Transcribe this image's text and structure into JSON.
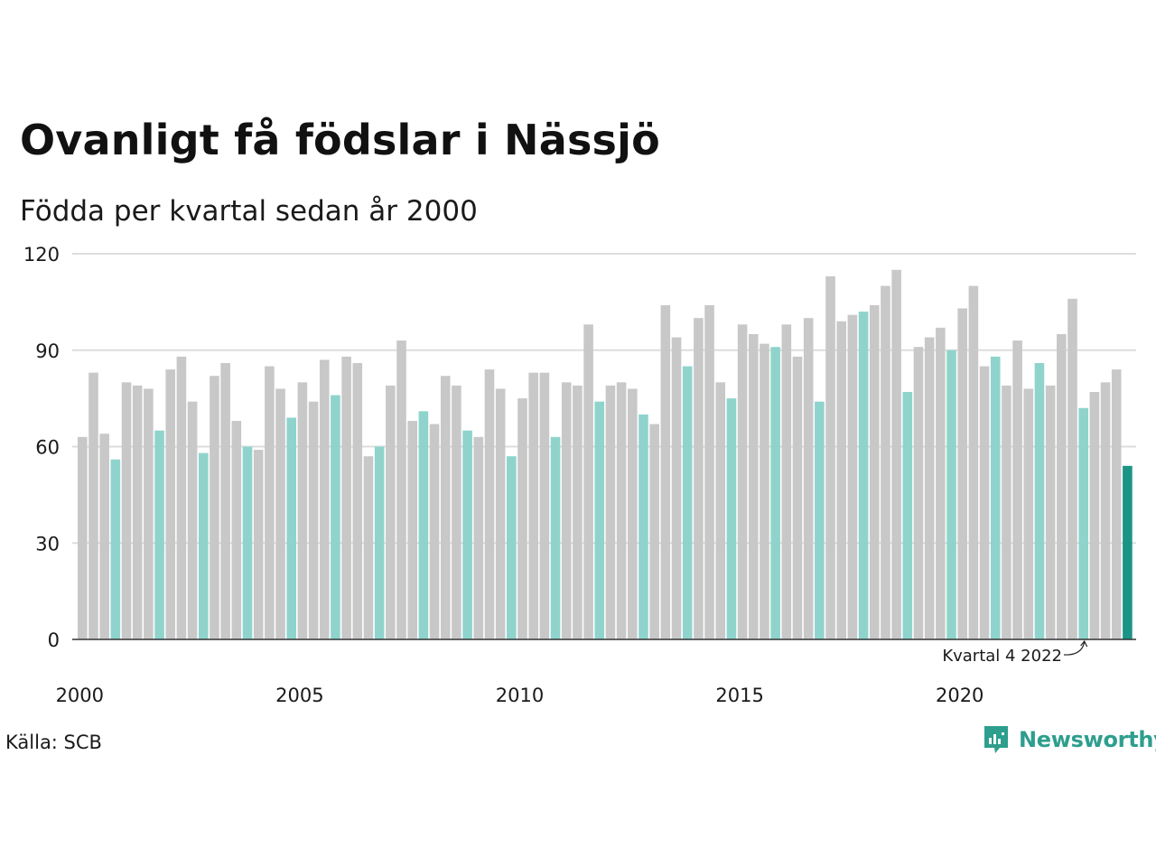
{
  "header": {
    "title": "Ovanligt få födslar i Nässjö",
    "subtitle": "Födda per kvartal sedan år 2000"
  },
  "footer": {
    "source": "Källa: SCB",
    "brand": "Newsworthy",
    "logo_icon": "bar-chart-speech-bubble-icon"
  },
  "colors": {
    "bar_other": "#c8c8c8",
    "bar_q4": "#8fd4cc",
    "bar_latest": "#1b9485",
    "grid": "#dddddd",
    "axis": "#333333",
    "brand": "#2e9e8e"
  },
  "chart_data": {
    "type": "bar",
    "title": "Ovanligt få födslar i Nässjö",
    "subtitle": "Födda per kvartal sedan år 2000",
    "xlabel": "",
    "ylabel": "",
    "ylim": [
      0,
      120
    ],
    "yticks": [
      0,
      30,
      60,
      90,
      120
    ],
    "xtick_labels": [
      "2000",
      "2005",
      "2010",
      "2015",
      "2020"
    ],
    "grid": true,
    "start": "2000 Q1",
    "end": "2023 Q4",
    "highlight_rule": "Q4 bars highlighted; latest quarter emphasised",
    "annotation": {
      "text": "Kvartal 4 2022",
      "target": "2022 Q4"
    },
    "values": [
      63,
      83,
      64,
      56,
      80,
      79,
      78,
      65,
      84,
      88,
      74,
      58,
      82,
      86,
      68,
      60,
      59,
      85,
      78,
      69,
      80,
      74,
      87,
      76,
      88,
      86,
      57,
      60,
      79,
      93,
      68,
      71,
      67,
      82,
      79,
      65,
      63,
      84,
      78,
      57,
      75,
      83,
      83,
      63,
      80,
      79,
      98,
      74,
      79,
      80,
      78,
      70,
      67,
      104,
      94,
      85,
      100,
      104,
      80,
      75,
      98,
      95,
      92,
      91,
      98,
      88,
      100,
      74,
      113,
      99,
      101,
      102,
      104,
      110,
      115,
      77,
      91,
      94,
      97,
      90,
      103,
      110,
      85,
      88,
      79,
      93,
      78,
      86,
      79,
      95,
      106,
      72,
      77,
      80,
      84,
      54
    ]
  }
}
